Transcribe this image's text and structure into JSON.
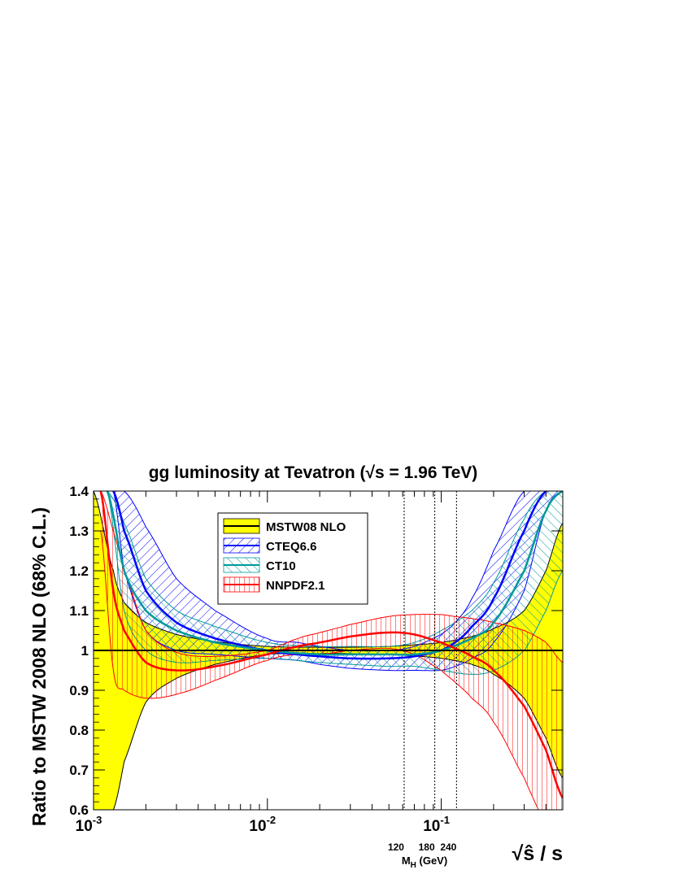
{
  "chart_data": {
    "type": "line",
    "title": "gg luminosity at Tevatron (√s = 1.96 TeV)",
    "xlabel": "√ŝ / s",
    "ylabel": "Ratio to MSTW 2008 NLO (68% C.L.)",
    "x_scale": "log",
    "xlim": [
      0.001,
      0.5
    ],
    "ylim": [
      0.6,
      1.4
    ],
    "y_ticks": [
      0.6,
      0.7,
      0.8,
      0.9,
      1,
      1.1,
      1.2,
      1.3,
      1.4
    ],
    "x_ticks": [
      {
        "value": 0.001,
        "base": "10",
        "exp": "-3"
      },
      {
        "value": 0.01,
        "base": "10",
        "exp": "-2"
      },
      {
        "value": 0.1,
        "base": "10",
        "exp": "-1"
      }
    ],
    "mh_axis": {
      "label": "M",
      "label_sub": "H",
      "label_unit": " (GeV)",
      "markers": [
        {
          "value": 0.0612,
          "label": "120"
        },
        {
          "value": 0.0918,
          "label": "180"
        },
        {
          "value": 0.1224,
          "label": "240"
        }
      ]
    },
    "legend_position": "top-center",
    "series": [
      {
        "name": "MSTW08 NLO",
        "color": "#ffff00",
        "edge_color": "#000000",
        "x": [
          0.001,
          0.0013,
          0.0015,
          0.002,
          0.003,
          0.005,
          0.01,
          0.02,
          0.03,
          0.05,
          0.07,
          0.1,
          0.15,
          0.2,
          0.3,
          0.4,
          0.5
        ],
        "central": [
          1,
          1,
          1,
          1,
          1,
          1,
          1,
          1,
          1,
          1,
          1,
          1,
          1,
          1,
          1,
          1,
          1
        ],
        "upper": [
          1.4,
          1.2,
          1.12,
          1.07,
          1.04,
          1.022,
          1.01,
          1.008,
          1.008,
          1.01,
          1.014,
          1.02,
          1.035,
          1.055,
          1.1,
          1.2,
          1.32
        ],
        "lower": [
          0.6,
          0.6,
          0.72,
          0.87,
          0.93,
          0.965,
          0.99,
          0.992,
          0.992,
          0.99,
          0.986,
          0.98,
          0.965,
          0.94,
          0.88,
          0.78,
          0.68
        ]
      },
      {
        "name": "CTEQ6.6",
        "color": "#0000ff",
        "x": [
          0.0013,
          0.0015,
          0.002,
          0.003,
          0.005,
          0.01,
          0.015,
          0.02,
          0.03,
          0.05,
          0.07,
          0.1,
          0.12,
          0.15,
          0.2,
          0.3,
          0.4,
          0.5
        ],
        "central": [
          1.4,
          1.3,
          1.15,
          1.07,
          1.03,
          1.0,
          0.99,
          0.985,
          0.98,
          0.98,
          0.985,
          1.0,
          1.02,
          1.06,
          1.13,
          1.3,
          1.4,
          1.4
        ],
        "upper": [
          1.4,
          1.4,
          1.31,
          1.18,
          1.1,
          1.03,
          1.02,
          1.01,
          1.0,
          1.0,
          1.01,
          1.04,
          1.07,
          1.13,
          1.25,
          1.4,
          1.4,
          1.4
        ],
        "lower": [
          1.4,
          1.2,
          1.05,
          1.0,
          0.99,
          0.98,
          0.975,
          0.965,
          0.955,
          0.95,
          0.95,
          0.95,
          0.96,
          0.98,
          1.02,
          1.15,
          1.35,
          1.4
        ]
      },
      {
        "name": "CT10",
        "color": "#009999",
        "x": [
          0.0012,
          0.0015,
          0.002,
          0.003,
          0.005,
          0.01,
          0.02,
          0.03,
          0.05,
          0.07,
          0.1,
          0.15,
          0.2,
          0.3,
          0.4,
          0.5
        ],
        "central": [
          1.4,
          1.2,
          1.1,
          1.05,
          1.02,
          1.0,
          0.99,
          0.99,
          0.99,
          0.99,
          1.0,
          1.03,
          1.07,
          1.2,
          1.35,
          1.4
        ],
        "upper": [
          1.4,
          1.32,
          1.18,
          1.1,
          1.06,
          1.02,
          1.01,
          1.01,
          1.01,
          1.02,
          1.05,
          1.1,
          1.17,
          1.33,
          1.4,
          1.4
        ],
        "lower": [
          1.4,
          1.1,
          1.0,
          0.97,
          0.975,
          0.98,
          0.97,
          0.965,
          0.96,
          0.96,
          0.95,
          0.94,
          0.95,
          1.0,
          1.1,
          1.2
        ]
      },
      {
        "name": "NNPDF2.1",
        "color": "#ff0000",
        "x": [
          0.0011,
          0.0013,
          0.0015,
          0.002,
          0.003,
          0.005,
          0.01,
          0.015,
          0.02,
          0.03,
          0.05,
          0.07,
          0.1,
          0.12,
          0.15,
          0.2,
          0.3,
          0.4,
          0.5
        ],
        "central": [
          1.4,
          1.15,
          1.05,
          0.97,
          0.95,
          0.96,
          0.99,
          1.01,
          1.02,
          1.035,
          1.045,
          1.04,
          1.02,
          1.005,
          0.985,
          0.95,
          0.86,
          0.75,
          0.63
        ],
        "upper": [
          1.4,
          1.3,
          1.2,
          1.05,
          0.995,
          0.985,
          1.0,
          1.03,
          1.045,
          1.065,
          1.085,
          1.09,
          1.09,
          1.085,
          1.08,
          1.07,
          1.05,
          1.02,
          0.97
        ],
        "lower": [
          1.3,
          0.95,
          0.9,
          0.88,
          0.89,
          0.925,
          0.975,
          0.99,
          0.99,
          1.0,
          1.005,
          0.99,
          0.95,
          0.92,
          0.88,
          0.82,
          0.68,
          0.56,
          0.45
        ]
      }
    ]
  }
}
